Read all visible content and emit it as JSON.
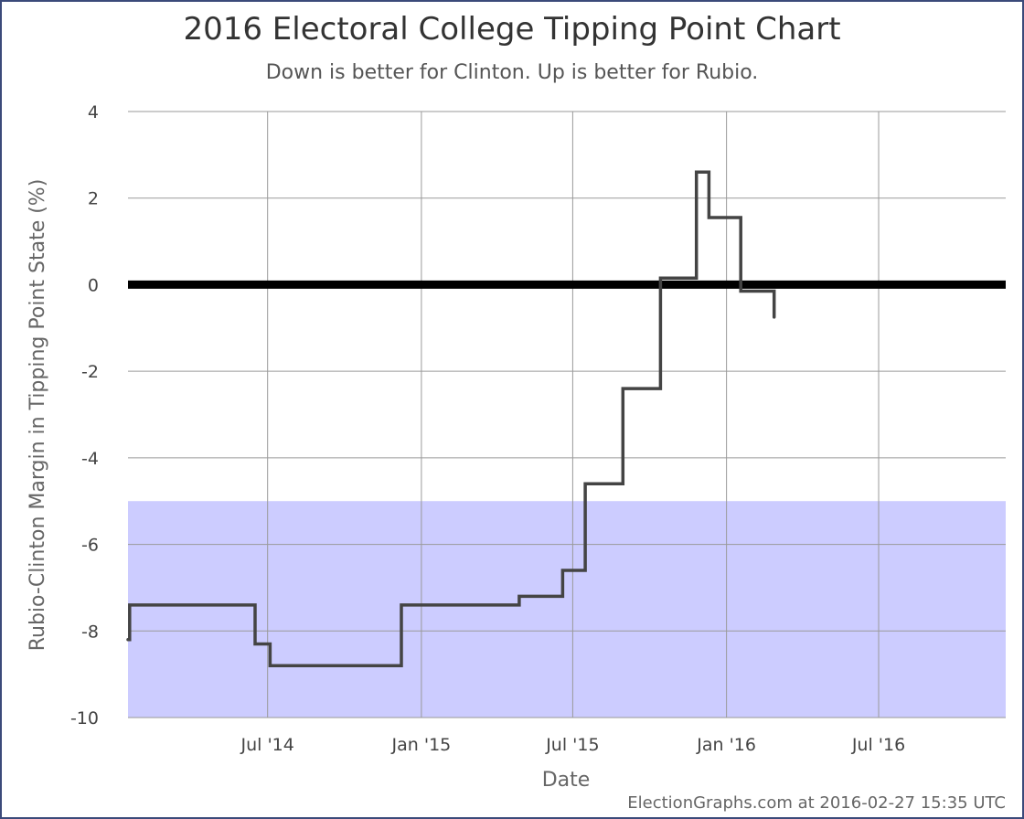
{
  "chart_data": {
    "type": "line",
    "step": "after",
    "title": "2016 Electoral College Tipping Point Chart",
    "subtitle": "Down is better for Clinton. Up is better for Rubio.",
    "xlabel": "Date",
    "ylabel": "Rubio-Clinton Margin in Tipping Point State (%)",
    "ylim": [
      -10,
      4
    ],
    "yticks": [
      4,
      2,
      0,
      -2,
      -4,
      -6,
      -8,
      -10
    ],
    "xlim": [
      "2014-01-15",
      "2016-11-30"
    ],
    "xticks": [
      {
        "date": "2014-07-01",
        "label": "Jul '14"
      },
      {
        "date": "2015-01-01",
        "label": "Jan '15"
      },
      {
        "date": "2015-07-01",
        "label": "Jul '15"
      },
      {
        "date": "2016-01-01",
        "label": "Jan '16"
      },
      {
        "date": "2016-07-01",
        "label": "Jul '16"
      }
    ],
    "grid": true,
    "shaded_band": {
      "y_from": -10,
      "y_to": -5,
      "color": "#ccccff"
    },
    "zero_line": {
      "y": 0,
      "color": "#000000"
    },
    "series": [
      {
        "color": "#444444",
        "points": [
          {
            "x": "2014-01-15",
            "y": -8.2
          },
          {
            "x": "2014-01-17",
            "y": -7.4
          },
          {
            "x": "2014-06-16",
            "y": -8.3
          },
          {
            "x": "2014-07-04",
            "y": -8.8
          },
          {
            "x": "2014-12-08",
            "y": -7.4
          },
          {
            "x": "2015-04-28",
            "y": -7.2
          },
          {
            "x": "2015-06-19",
            "y": -6.6
          },
          {
            "x": "2015-07-16",
            "y": -4.6
          },
          {
            "x": "2015-08-30",
            "y": -2.4
          },
          {
            "x": "2015-10-14",
            "y": 0.15
          },
          {
            "x": "2015-11-26",
            "y": 2.6
          },
          {
            "x": "2015-12-11",
            "y": 1.55
          },
          {
            "x": "2016-01-18",
            "y": -0.15
          },
          {
            "x": "2016-02-27",
            "y": -0.75
          }
        ]
      }
    ]
  },
  "footer": {
    "credit": "ElectionGraphs.com at 2016-02-27 15:35 UTC"
  }
}
